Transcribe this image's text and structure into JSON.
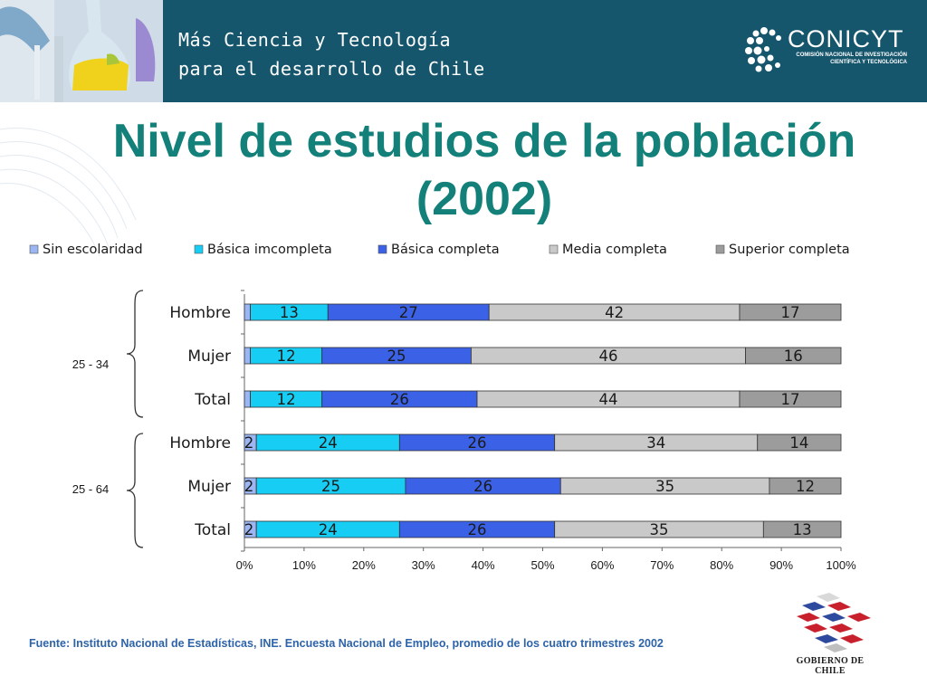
{
  "header": {
    "tagline_line1": "Más Ciencia y Tecnología",
    "tagline_line2": "para el desarrollo de Chile",
    "logo_name": "CONICYT",
    "logo_sub_line1": "COMISIÓN NACIONAL DE INVESTIGACIÓN",
    "logo_sub_line2": "CIENTÍFICA Y TECNOLÓGICA"
  },
  "title_line1": "Nivel de estudios de la población",
  "title_line2": "(2002)",
  "source": "Fuente: Instituto Nacional de Estadísticas, INE. Encuesta Nacional de Empleo, promedio de los cuatro trimestres 2002",
  "footer_logo_text": "GOBIERNO DE CHILE",
  "chart_data": {
    "type": "bar",
    "orientation": "horizontal",
    "stacked": "percent",
    "xlim": [
      0,
      100
    ],
    "x_ticks": [
      "0%",
      "10%",
      "20%",
      "30%",
      "40%",
      "50%",
      "60%",
      "70%",
      "80%",
      "90%",
      "100%"
    ],
    "legend_position": "top",
    "groups": [
      {
        "label": "25 - 34",
        "categories": [
          "Hombre",
          "Mujer",
          "Total"
        ]
      },
      {
        "label": "25 - 64",
        "categories": [
          "Hombre",
          "Mujer",
          "Total"
        ]
      }
    ],
    "series": [
      {
        "name": "Sin escolaridad",
        "color": "#9bb6f2",
        "values": [
          1,
          1,
          1,
          2,
          2,
          2
        ],
        "labels": [
          "",
          "",
          "",
          "2",
          "2",
          "2"
        ]
      },
      {
        "name": "Básica imcompleta",
        "color": "#18cdf4",
        "values": [
          13,
          12,
          12,
          24,
          25,
          24
        ],
        "labels": [
          "13",
          "12",
          "12",
          "24",
          "25",
          "24"
        ]
      },
      {
        "name": "Básica completa",
        "color": "#3b62e6",
        "values": [
          27,
          25,
          26,
          26,
          26,
          26
        ],
        "labels": [
          "27",
          "25",
          "26",
          "26",
          "26",
          "26"
        ]
      },
      {
        "name": "Media completa",
        "color": "#c9c9c9",
        "values": [
          42,
          46,
          44,
          34,
          35,
          35
        ],
        "labels": [
          "42",
          "46",
          "44",
          "34",
          "35",
          "35"
        ]
      },
      {
        "name": "Superior completa",
        "color": "#9c9c9c",
        "values": [
          17,
          16,
          17,
          14,
          12,
          13
        ],
        "labels": [
          "17",
          "16",
          "17",
          "14",
          "12",
          "13"
        ]
      }
    ]
  }
}
